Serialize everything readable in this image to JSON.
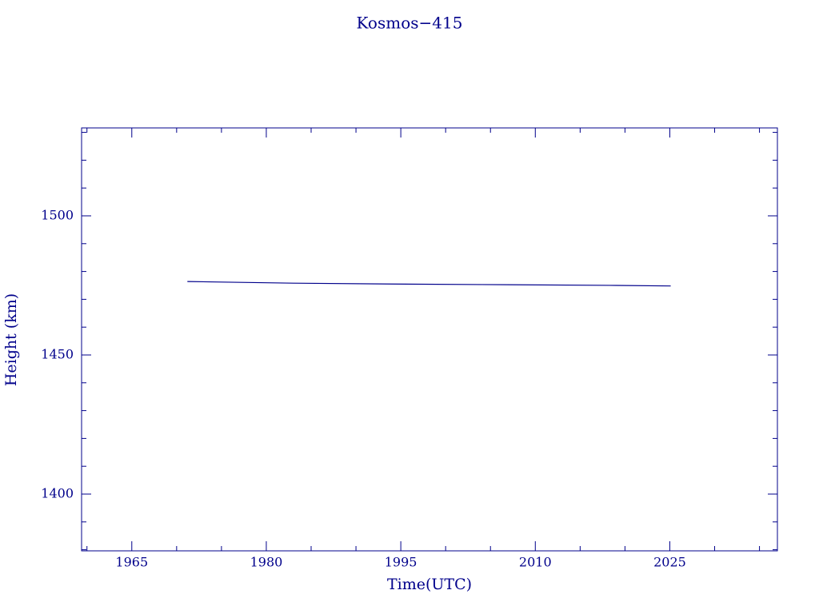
{
  "chart_data": {
    "type": "line",
    "title": "Kosmos−415",
    "x_label": "Time(UTC)",
    "y_label": "Height (km)",
    "x": [
      1971.2,
      1975,
      1983,
      1994,
      2004,
      2019,
      2025.1
    ],
    "series": [
      {
        "name": "Kosmos−415",
        "color": "#00008b",
        "values": [
          1476.4,
          1476.2,
          1475.8,
          1475.5,
          1475.3,
          1475.0,
          1474.8
        ]
      }
    ],
    "xlim": [
      1959.4,
      2037
    ],
    "xticks": [
      1965,
      1980,
      1995,
      2010,
      2025
    ],
    "xminorticks": [
      1960,
      1970,
      1975,
      1985,
      1990,
      2000,
      2005,
      2015,
      2020,
      2030,
      2035
    ],
    "ylim": [
      1379.6,
      1531.6
    ],
    "yticks": [
      1400,
      1450,
      1500
    ],
    "yminorticks": [
      1380,
      1390,
      1410,
      1420,
      1430,
      1440,
      1460,
      1470,
      1480,
      1490,
      1510,
      1520,
      1530
    ],
    "axis_color": "#00008b"
  }
}
